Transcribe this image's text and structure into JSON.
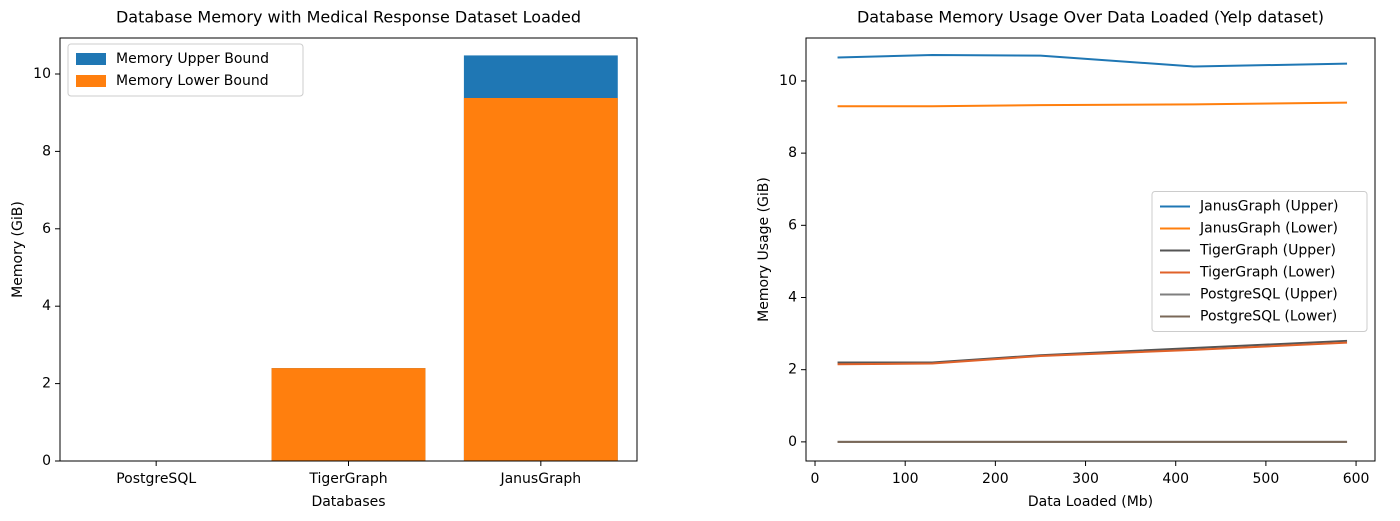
{
  "chart_data": [
    {
      "type": "bar",
      "title": "Database Memory with Medical Response Dataset Loaded",
      "xlabel": "Databases",
      "ylabel": "Memory (GiB)",
      "categories": [
        "PostgreSQL",
        "TigerGraph",
        "JanusGraph"
      ],
      "series": [
        {
          "name": "Memory Upper Bound",
          "color": "#1f77b4",
          "values": [
            0.01,
            2.4,
            10.48
          ]
        },
        {
          "name": "Memory Lower Bound",
          "color": "#ff7f0e",
          "values": [
            0.01,
            2.4,
            9.38
          ]
        }
      ],
      "ylim": [
        0,
        10.93
      ],
      "yticks": [
        0,
        2,
        4,
        6,
        8,
        10
      ],
      "legend": "upper-left"
    },
    {
      "type": "line",
      "title": "Database Memory Usage Over Data Loaded (Yelp dataset)",
      "xlabel": "Data Loaded (Mb)",
      "ylabel": "Memory Usage (GiB)",
      "x": [
        25,
        130,
        250,
        420,
        590
      ],
      "series": [
        {
          "name": "JanusGraph (Upper)",
          "color": "#1f77b4",
          "values": [
            10.65,
            10.72,
            10.7,
            10.4,
            10.48
          ]
        },
        {
          "name": "JanusGraph (Lower)",
          "color": "#ff7f0e",
          "values": [
            9.3,
            9.3,
            9.33,
            9.35,
            9.4
          ]
        },
        {
          "name": "TigerGraph (Upper)",
          "color": "#555555",
          "values": [
            2.2,
            2.2,
            2.4,
            2.6,
            2.8
          ]
        },
        {
          "name": "TigerGraph (Lower)",
          "color": "#e0622a",
          "values": [
            2.15,
            2.17,
            2.38,
            2.55,
            2.75
          ]
        },
        {
          "name": "PostgreSQL (Upper)",
          "color": "#7f7f7f",
          "values": [
            0,
            0,
            0,
            0,
            0
          ]
        },
        {
          "name": "PostgreSQL (Lower)",
          "color": "#7a6858",
          "values": [
            0,
            0,
            0,
            0,
            0
          ]
        }
      ],
      "xlim": [
        -10,
        621
      ],
      "xticks": [
        0,
        100,
        200,
        300,
        400,
        500,
        600
      ],
      "ylim": [
        -0.53,
        11.19
      ],
      "yticks": [
        0,
        2,
        4,
        6,
        8,
        10
      ],
      "legend": "center-right"
    }
  ]
}
